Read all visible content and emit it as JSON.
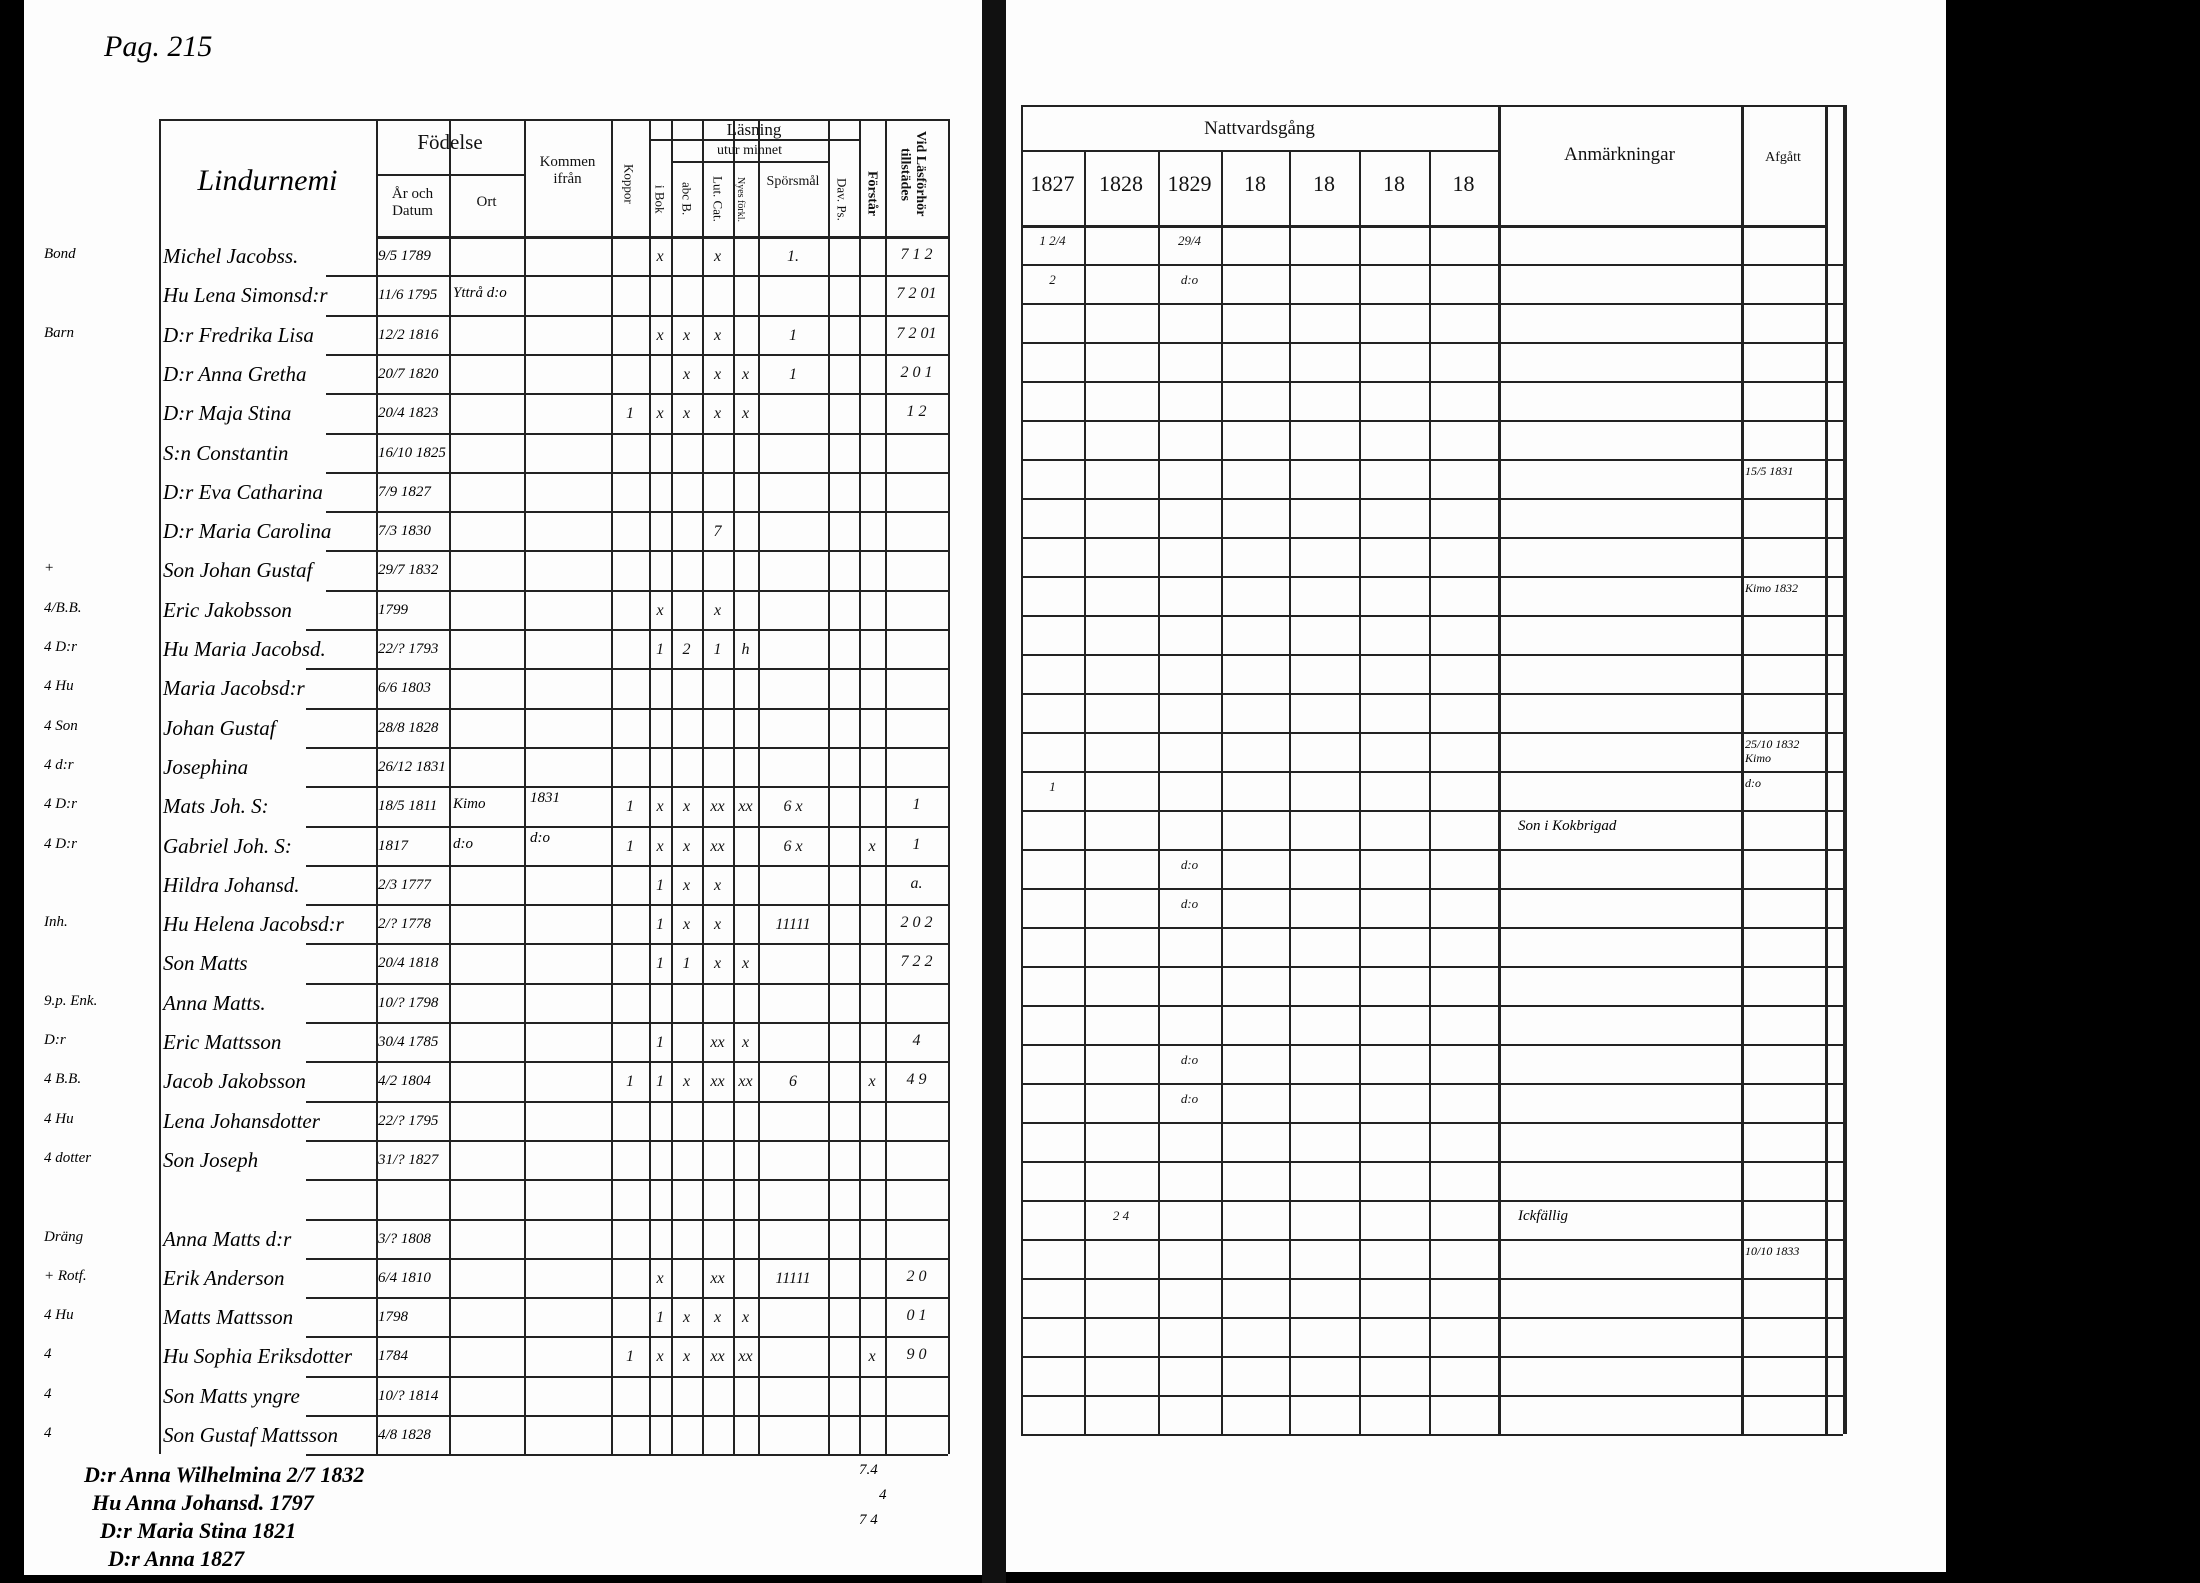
{
  "left_page": {
    "page_ref": "Pag. 215",
    "headers": {
      "name": "Lindurnemi",
      "birth": "Födelse",
      "birth_date": "År och Datum",
      "birth_place": "Ort",
      "came_from": "Kommen ifrån",
      "smallpox": "Koppor",
      "reading": "Läsning",
      "by_heart": "utur minnet",
      "book": "i Bok",
      "abc": "abc B.",
      "luther": "Lut. Cat.",
      "explanation": "Nyes förkl.",
      "questions": "Spörsmål",
      "david": "Dav. Ps.",
      "understands": "Förstår",
      "attended": "Vid Läsförhör tillstädes"
    },
    "rows": [
      {
        "note": "Bond",
        "name": "Michel Jacobss.",
        "date": "9/5 1789",
        "place": "",
        "from": "",
        "marks": [
          "",
          "x",
          "",
          "x",
          "",
          "1.",
          "",
          "",
          ""
        ],
        "vid": "7 1 2"
      },
      {
        "note": "",
        "name": "Hu Lena Simonsd:r",
        "date": "11/6 1795",
        "place": "Yttrå d:o",
        "from": "",
        "marks": [
          "",
          "",
          "",
          "",
          "",
          "",
          "",
          "",
          ""
        ],
        "vid": "7 2 01"
      },
      {
        "note": "Barn",
        "name": "D:r Fredrika Lisa",
        "date": "12/2 1816",
        "place": "",
        "from": "",
        "marks": [
          "",
          "x",
          "x",
          "x",
          "",
          "1",
          "",
          "",
          ""
        ],
        "vid": "7 2 01"
      },
      {
        "note": "",
        "name": "D:r Anna Gretha",
        "date": "20/7 1820",
        "place": "",
        "from": "",
        "marks": [
          "",
          "",
          "x",
          "x",
          "x",
          "1",
          "",
          "",
          ""
        ],
        "vid": "2 0 1"
      },
      {
        "note": "",
        "name": "D:r Maja Stina",
        "date": "20/4 1823",
        "place": "",
        "from": "",
        "marks": [
          "1",
          "x",
          "x",
          "x",
          "x",
          "",
          "",
          "",
          ""
        ],
        "vid": "1 2"
      },
      {
        "note": "",
        "name": "S:n Constantin",
        "date": "16/10 1825",
        "place": "",
        "from": "",
        "marks": [
          "",
          "",
          "",
          "",
          "",
          "",
          "",
          "",
          ""
        ],
        "vid": ""
      },
      {
        "note": "",
        "name": "D:r Eva Catharina",
        "date": "7/9 1827",
        "place": "",
        "from": "",
        "marks": [
          "",
          "",
          "",
          "",
          "",
          "",
          "",
          "",
          ""
        ],
        "vid": ""
      },
      {
        "note": "",
        "name": "D:r Maria Carolina",
        "date": "7/3 1830",
        "place": "",
        "from": "",
        "marks": [
          "",
          "",
          "",
          "7",
          "",
          "",
          "",
          "",
          ""
        ],
        "vid": ""
      },
      {
        "note": "+",
        "name": "Son Johan Gustaf",
        "date": "29/7 1832",
        "place": "",
        "from": "",
        "marks": [
          "",
          "",
          "",
          "",
          "",
          "",
          "",
          "",
          ""
        ],
        "vid": ""
      },
      {
        "note": "4/B.B.",
        "name": "Eric Jakobsson",
        "date": "1799",
        "place": "",
        "from": "",
        "marks": [
          "",
          "x",
          "",
          "x",
          "",
          "",
          "",
          "",
          ""
        ],
        "vid": ""
      },
      {
        "note": "4 D:r",
        "name": "Hu Maria Jacobsd.",
        "date": "22/? 1793",
        "place": "",
        "from": "",
        "marks": [
          "",
          "1",
          "2",
          "1",
          "h",
          "",
          "",
          "",
          ""
        ],
        "vid": ""
      },
      {
        "note": "4 Hu",
        "name": "Maria Jacobsd:r",
        "date": "6/6 1803",
        "place": "",
        "from": "",
        "marks": [
          "",
          "",
          "",
          "",
          "",
          "",
          "",
          "",
          ""
        ],
        "vid": ""
      },
      {
        "note": "4 Son",
        "name": "Johan Gustaf",
        "date": "28/8 1828",
        "place": "",
        "from": "",
        "marks": [
          "",
          "",
          "",
          "",
          "",
          "",
          "",
          "",
          ""
        ],
        "vid": ""
      },
      {
        "note": "4 d:r",
        "name": "Josephina",
        "date": "26/12 1831",
        "place": "",
        "from": "",
        "marks": [
          "",
          "",
          "",
          "",
          "",
          "",
          "",
          "",
          ""
        ],
        "vid": ""
      },
      {
        "note": "4 D:r",
        "name": "Mats Joh. S:",
        "date": "18/5 1811",
        "place": "Kimo",
        "from": "1831",
        "marks": [
          "1",
          "x",
          "x",
          "xx",
          "xx",
          "6 x",
          "",
          "",
          ""
        ],
        "vid": "1"
      },
      {
        "note": "4 D:r",
        "name": "Gabriel Joh. S:",
        "date": "1817",
        "place": "d:o",
        "from": "d:o",
        "marks": [
          "1",
          "x",
          "x",
          "xx",
          "",
          "6 x",
          "",
          "x",
          ""
        ],
        "vid": "1"
      },
      {
        "note": "",
        "name": "Hildra Johansd.",
        "date": "2/3 1777",
        "place": "",
        "from": "",
        "marks": [
          "",
          "1",
          "x",
          "x",
          "",
          "",
          "",
          "",
          ""
        ],
        "vid": "a."
      },
      {
        "note": "Inh.",
        "name": "Hu Helena Jacobsd:r",
        "date": "2/? 1778",
        "place": "",
        "from": "",
        "marks": [
          "",
          "1",
          "x",
          "x",
          "",
          "11111",
          "",
          "",
          ""
        ],
        "vid": "2 0 2"
      },
      {
        "note": "",
        "name": "Son Matts",
        "date": "20/4 1818",
        "place": "",
        "from": "",
        "marks": [
          "",
          "1",
          "1",
          "x",
          "x",
          "",
          "",
          "",
          ""
        ],
        "vid": "7 2 2"
      },
      {
        "note": "9.p. Enk.",
        "name": "Anna Matts.",
        "date": "10/? 1798",
        "place": "",
        "from": "",
        "marks": [
          "",
          "",
          "",
          "",
          "",
          "",
          "",
          "",
          ""
        ],
        "vid": ""
      },
      {
        "note": "D:r",
        "name": "Eric Mattsson",
        "date": "30/4 1785",
        "place": "",
        "from": "",
        "marks": [
          "",
          "1",
          "",
          "xx",
          "x",
          "",
          "",
          "",
          ""
        ],
        "vid": "4"
      },
      {
        "note": "4 B.B.",
        "name": "Jacob Jakobsson",
        "date": "4/2 1804",
        "place": "",
        "from": "",
        "marks": [
          "1",
          "1",
          "x",
          "xx",
          "xx",
          "6",
          "",
          "x",
          ""
        ],
        "vid": "4 9"
      },
      {
        "note": "4 Hu",
        "name": "Lena Johansdotter",
        "date": "22/? 1795",
        "place": "",
        "from": "",
        "marks": [
          "",
          "",
          "",
          "",
          "",
          "",
          "",
          "",
          ""
        ],
        "vid": ""
      },
      {
        "note": "4 dotter",
        "name": "Son Joseph",
        "date": "31/? 1827",
        "place": "",
        "from": "",
        "marks": [
          "",
          "",
          "",
          "",
          "",
          "",
          "",
          "",
          ""
        ],
        "vid": ""
      },
      {
        "note": "",
        "name": "",
        "date": "",
        "place": "",
        "from": "",
        "marks": [
          "",
          "",
          "",
          "",
          "",
          "",
          "",
          "",
          ""
        ],
        "vid": ""
      },
      {
        "note": "Dräng",
        "name": "Anna Matts d:r",
        "date": "3/? 1808",
        "place": "",
        "from": "",
        "marks": [
          "",
          "",
          "",
          "",
          "",
          "",
          "",
          "",
          ""
        ],
        "vid": ""
      },
      {
        "note": "+ Rotf.",
        "name": "Erik Anderson",
        "date": "6/4 1810",
        "place": "",
        "from": "",
        "marks": [
          "",
          "x",
          "",
          "xx",
          "",
          "11111",
          "",
          "",
          ""
        ],
        "vid": "2 0"
      },
      {
        "note": "4 Hu",
        "name": "Matts Mattsson",
        "date": "1798",
        "place": "",
        "from": "",
        "marks": [
          "",
          "1",
          "x",
          "x",
          "x",
          "",
          "",
          "",
          ""
        ],
        "vid": "0 1"
      },
      {
        "note": "4",
        "name": "Hu Sophia Eriksdotter",
        "date": "1784",
        "place": "",
        "from": "",
        "marks": [
          "1",
          "x",
          "x",
          "xx",
          "xx",
          "",
          "",
          "x",
          ""
        ],
        "vid": "9 0"
      },
      {
        "note": "4",
        "name": "Son Matts yngre",
        "date": "10/? 1814",
        "place": "",
        "from": "",
        "marks": [
          "",
          "",
          "",
          "",
          "",
          "",
          "",
          "",
          ""
        ],
        "vid": ""
      },
      {
        "note": "4",
        "name": "Son Gustaf Mattsson",
        "date": "4/8 1828",
        "place": "",
        "from": "",
        "marks": [
          "",
          "",
          "",
          "",
          "",
          "",
          "",
          "",
          ""
        ],
        "vid": ""
      }
    ],
    "footer_notes": [
      "D:r Anna Wilhelmina 2/7 1832",
      "Hu Anna Johansd. 1797",
      "D:r Maria Stina 1821",
      "D:r Anna 1827"
    ],
    "footer_vid": [
      "7.4",
      "4",
      "7 4"
    ]
  },
  "right_page": {
    "headers": {
      "communion": "Nattvardsgång",
      "years": [
        "1827",
        "1828",
        "1829",
        "18",
        "18",
        "18",
        "18"
      ],
      "remarks": "Anmärkningar",
      "departed": "Afgått"
    },
    "rows": [
      {
        "y": [
          "1 2/4",
          "",
          "29/4",
          "",
          "",
          "",
          ""
        ],
        "remark": "",
        "departed": ""
      },
      {
        "y": [
          "2",
          "",
          "d:o",
          "",
          "",
          "",
          ""
        ],
        "remark": "",
        "departed": ""
      },
      {
        "y": [
          "",
          "",
          "",
          "",
          "",
          "",
          ""
        ],
        "remark": "",
        "departed": ""
      },
      {
        "y": [
          "",
          "",
          "",
          "",
          "",
          "",
          ""
        ],
        "remark": "",
        "departed": ""
      },
      {
        "y": [
          "",
          "",
          "",
          "",
          "",
          "",
          ""
        ],
        "remark": "",
        "departed": ""
      },
      {
        "y": [
          "",
          "",
          "",
          "",
          "",
          "",
          ""
        ],
        "remark": "",
        "departed": ""
      },
      {
        "y": [
          "",
          "",
          "",
          "",
          "",
          "",
          ""
        ],
        "remark": "",
        "departed": "15/5 1831"
      },
      {
        "y": [
          "",
          "",
          "",
          "",
          "",
          "",
          ""
        ],
        "remark": "",
        "departed": ""
      },
      {
        "y": [
          "",
          "",
          "",
          "",
          "",
          "",
          ""
        ],
        "remark": "",
        "departed": ""
      },
      {
        "y": [
          "",
          "",
          "",
          "",
          "",
          "",
          ""
        ],
        "remark": "",
        "departed": "Kimo 1832"
      },
      {
        "y": [
          "",
          "",
          "",
          "",
          "",
          "",
          ""
        ],
        "remark": "",
        "departed": ""
      },
      {
        "y": [
          "",
          "",
          "",
          "",
          "",
          "",
          ""
        ],
        "remark": "",
        "departed": ""
      },
      {
        "y": [
          "",
          "",
          "",
          "",
          "",
          "",
          ""
        ],
        "remark": "",
        "departed": ""
      },
      {
        "y": [
          "",
          "",
          "",
          "",
          "",
          "",
          ""
        ],
        "remark": "",
        "departed": "25/10 1832 Kimo"
      },
      {
        "y": [
          "1",
          "",
          "",
          "",
          "",
          "",
          ""
        ],
        "remark": "",
        "departed": "d:o"
      },
      {
        "y": [
          "",
          "",
          "",
          "",
          "",
          "",
          ""
        ],
        "remark": "Son i Kokbrigad",
        "departed": ""
      },
      {
        "y": [
          "",
          "",
          "d:o",
          "",
          "",
          "",
          ""
        ],
        "remark": "",
        "departed": ""
      },
      {
        "y": [
          "",
          "",
          "d:o",
          "",
          "",
          "",
          ""
        ],
        "remark": "",
        "departed": ""
      },
      {
        "y": [
          "",
          "",
          "",
          "",
          "",
          "",
          ""
        ],
        "remark": "",
        "departed": ""
      },
      {
        "y": [
          "",
          "",
          "",
          "",
          "",
          "",
          ""
        ],
        "remark": "",
        "departed": ""
      },
      {
        "y": [
          "",
          "",
          "",
          "",
          "",
          "",
          ""
        ],
        "remark": "",
        "departed": ""
      },
      {
        "y": [
          "",
          "",
          "d:o",
          "",
          "",
          "",
          ""
        ],
        "remark": "",
        "departed": ""
      },
      {
        "y": [
          "",
          "",
          "d:o",
          "",
          "",
          "",
          ""
        ],
        "remark": "",
        "departed": ""
      },
      {
        "y": [
          "",
          "",
          "",
          "",
          "",
          "",
          ""
        ],
        "remark": "",
        "departed": ""
      },
      {
        "y": [
          "",
          "",
          "",
          "",
          "",
          "",
          ""
        ],
        "remark": "",
        "departed": ""
      },
      {
        "y": [
          "",
          "2 4",
          "",
          "",
          "",
          "",
          ""
        ],
        "remark": "Ickfällig",
        "departed": ""
      },
      {
        "y": [
          "",
          "",
          "",
          "",
          "",
          "",
          ""
        ],
        "remark": "",
        "departed": "10/10 1833"
      },
      {
        "y": [
          "",
          "",
          "",
          "",
          "",
          "",
          ""
        ],
        "remark": "",
        "departed": ""
      },
      {
        "y": [
          "",
          "",
          "",
          "",
          "",
          "",
          ""
        ],
        "remark": "",
        "departed": ""
      },
      {
        "y": [
          "",
          "",
          "",
          "",
          "",
          "",
          ""
        ],
        "remark": "",
        "departed": ""
      },
      {
        "y": [
          "",
          "",
          "",
          "",
          "",
          "",
          ""
        ],
        "remark": "",
        "departed": ""
      }
    ]
  }
}
